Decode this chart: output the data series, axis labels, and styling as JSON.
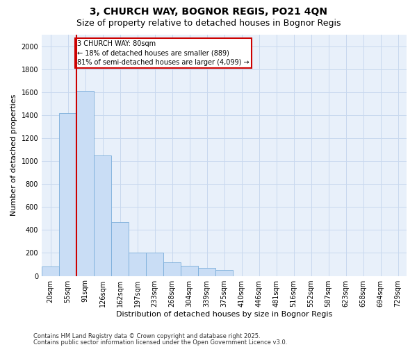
{
  "title1": "3, CHURCH WAY, BOGNOR REGIS, PO21 4QN",
  "title2": "Size of property relative to detached houses in Bognor Regis",
  "xlabel": "Distribution of detached houses by size in Bognor Regis",
  "ylabel": "Number of detached properties",
  "categories": [
    "20sqm",
    "55sqm",
    "91sqm",
    "126sqm",
    "162sqm",
    "197sqm",
    "233sqm",
    "268sqm",
    "304sqm",
    "339sqm",
    "375sqm",
    "410sqm",
    "446sqm",
    "481sqm",
    "516sqm",
    "552sqm",
    "587sqm",
    "623sqm",
    "658sqm",
    "694sqm",
    "729sqm"
  ],
  "values": [
    80,
    1420,
    1610,
    1050,
    470,
    200,
    200,
    120,
    90,
    70,
    50,
    0,
    0,
    0,
    0,
    0,
    0,
    0,
    0,
    0,
    0
  ],
  "bar_color": "#c9ddf5",
  "bar_edge_color": "#7aadda",
  "grid_color": "#c8d8ee",
  "background_color": "#e8f0fa",
  "vline_color": "#cc0000",
  "annotation_text": "3 CHURCH WAY: 80sqm\n← 18% of detached houses are smaller (889)\n81% of semi-detached houses are larger (4,099) →",
  "annotation_box_color": "#cc0000",
  "ylim": [
    0,
    2100
  ],
  "yticks": [
    0,
    200,
    400,
    600,
    800,
    1000,
    1200,
    1400,
    1600,
    1800,
    2000
  ],
  "footer1": "Contains HM Land Registry data © Crown copyright and database right 2025.",
  "footer2": "Contains public sector information licensed under the Open Government Licence v3.0.",
  "title_fontsize": 10,
  "subtitle_fontsize": 9,
  "tick_fontsize": 7,
  "label_fontsize": 8,
  "footer_fontsize": 6
}
